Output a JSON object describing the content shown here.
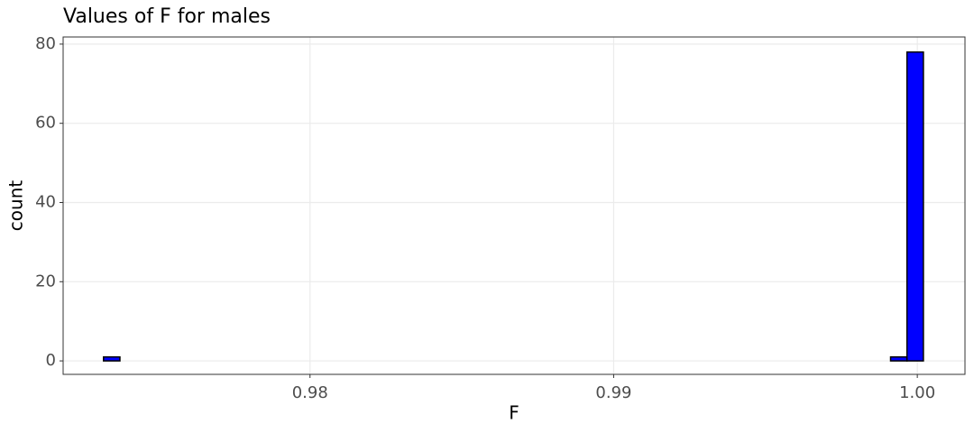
{
  "chart_data": {
    "type": "histogram",
    "title": "Values of F for males",
    "x_label": "F",
    "y_label": "count",
    "bins": [
      0.9732,
      0.97374,
      0.97428,
      0.97482,
      0.97536,
      0.9759,
      0.97644,
      0.97698,
      0.97752,
      0.97806,
      0.9786,
      0.97914,
      0.97968,
      0.98022,
      0.98076,
      0.9813,
      0.98184,
      0.98238,
      0.98292,
      0.98346,
      0.984,
      0.98454,
      0.98508,
      0.98562,
      0.98616,
      0.9867,
      0.98724,
      0.98778,
      0.98832,
      0.98886,
      0.9894,
      0.98994,
      0.99048,
      0.99102,
      0.99156,
      0.9921,
      0.99264,
      0.99318,
      0.99372,
      0.99426,
      0.9948,
      0.99534,
      0.99588,
      0.99642,
      0.99696,
      0.9975,
      0.99804,
      0.99858,
      0.99912,
      0.99966,
      1.0002
    ],
    "values": [
      1,
      0,
      0,
      0,
      0,
      0,
      0,
      0,
      0,
      0,
      0,
      0,
      0,
      0,
      0,
      0,
      0,
      0,
      0,
      0,
      0,
      0,
      0,
      0,
      0,
      0,
      0,
      0,
      0,
      0,
      0,
      0,
      0,
      0,
      0,
      0,
      0,
      0,
      0,
      0,
      0,
      0,
      0,
      0,
      0,
      0,
      0,
      0,
      1,
      78
    ],
    "color": "#0000ff",
    "edge_color": "#000000",
    "xlim": [
      0.97187,
      1.00157
    ],
    "xticks": [
      {
        "value": 0.98,
        "label": "0.98"
      },
      {
        "value": 0.99,
        "label": "0.99"
      },
      {
        "value": 1.0,
        "label": "1.00"
      }
    ],
    "ylim": [
      -3.4,
      81.8
    ],
    "yticks": [
      0,
      20,
      40,
      60,
      80
    ],
    "grid": true
  }
}
